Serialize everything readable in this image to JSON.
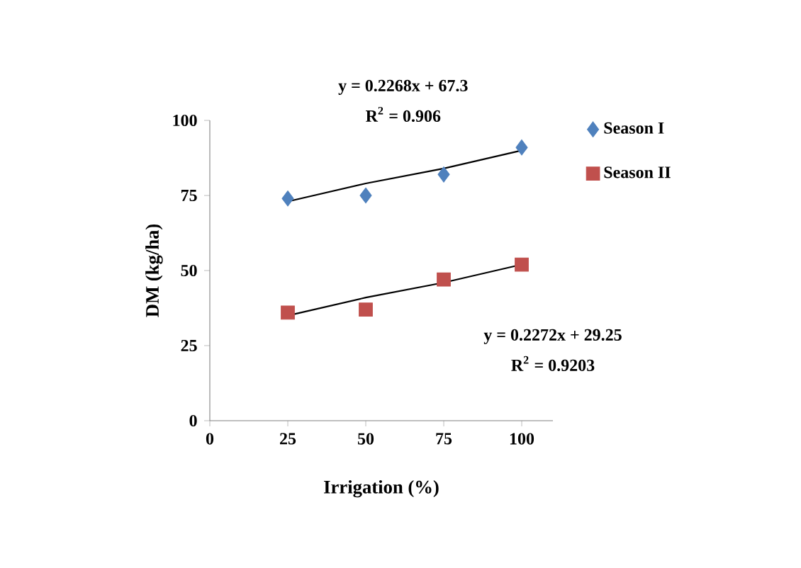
{
  "chart_data": {
    "type": "scatter",
    "xlabel": "Irrigation (%)",
    "ylabel": "DM (kg/ha)",
    "x": [
      25,
      50,
      75,
      100
    ],
    "series": [
      {
        "name": "Season I",
        "color": "#4f81bd",
        "marker": "diamond",
        "values": [
          74,
          75,
          82,
          91
        ]
      },
      {
        "name": "Season II",
        "color": "#c0504d",
        "marker": "square",
        "values": [
          36,
          37,
          47,
          52
        ]
      },
      {
        "type": "line",
        "color": "#000000",
        "marker": "none",
        "values": [
          73,
          79,
          84,
          90
        ]
      },
      {
        "type": "line",
        "color": "#000000",
        "marker": "none",
        "values": [
          35,
          41,
          46,
          52
        ]
      }
    ],
    "annotations": [
      "y = 0.2268x + 67.3",
      "R$^{2}$ = 0.906",
      "y = 0.2272x + 29.25",
      "R$^{2}$ = 0.9203"
    ],
    "xlim": [
      0,
      110
    ],
    "ylim": [
      0,
      100
    ],
    "xticks": [
      0,
      25,
      50,
      75,
      100
    ],
    "yticks": [
      0,
      25,
      50,
      75,
      100
    ],
    "grid": false,
    "legend": "top right"
  }
}
